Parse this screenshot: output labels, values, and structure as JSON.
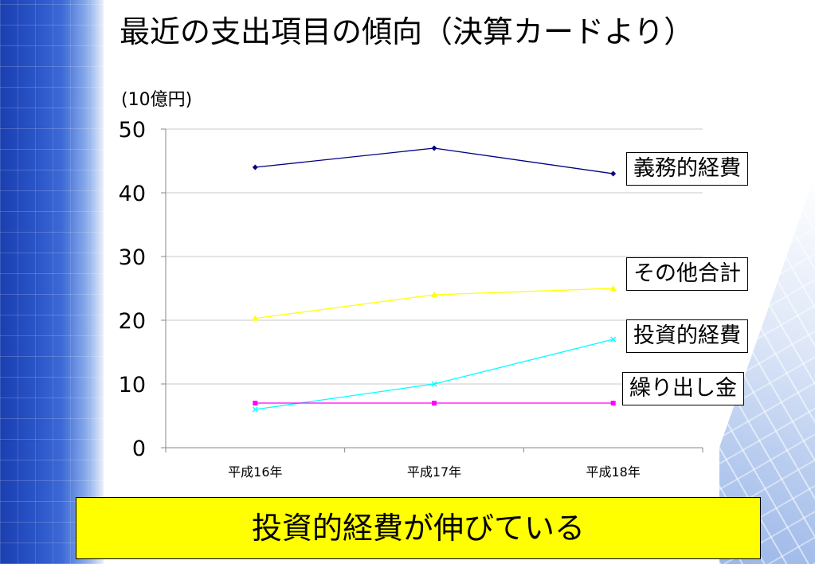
{
  "title": "最近の支出項目の傾向（決算カードより）",
  "callout": "投資的経費が伸びている",
  "chart_data": {
    "type": "line",
    "unit_label": "(10億円)",
    "categories": [
      "平成16年",
      "平成17年",
      "平成18年"
    ],
    "ylim": [
      0,
      50
    ],
    "yticks": [
      "0",
      "10",
      "20",
      "30",
      "40",
      "50"
    ],
    "grid": true,
    "series": [
      {
        "name": "義務的経費",
        "values": [
          44,
          47,
          43
        ],
        "color": "#000080",
        "marker": "diamond"
      },
      {
        "name": "その他合計",
        "values": [
          20.3,
          24,
          25
        ],
        "color": "#ffff00",
        "marker": "triangle"
      },
      {
        "name": "投資的経費",
        "values": [
          6,
          10,
          17
        ],
        "color": "#00ffff",
        "marker": "x"
      },
      {
        "name": "繰り出し金",
        "values": [
          7,
          7,
          7
        ],
        "color": "#ff00ff",
        "marker": "square"
      }
    ]
  }
}
